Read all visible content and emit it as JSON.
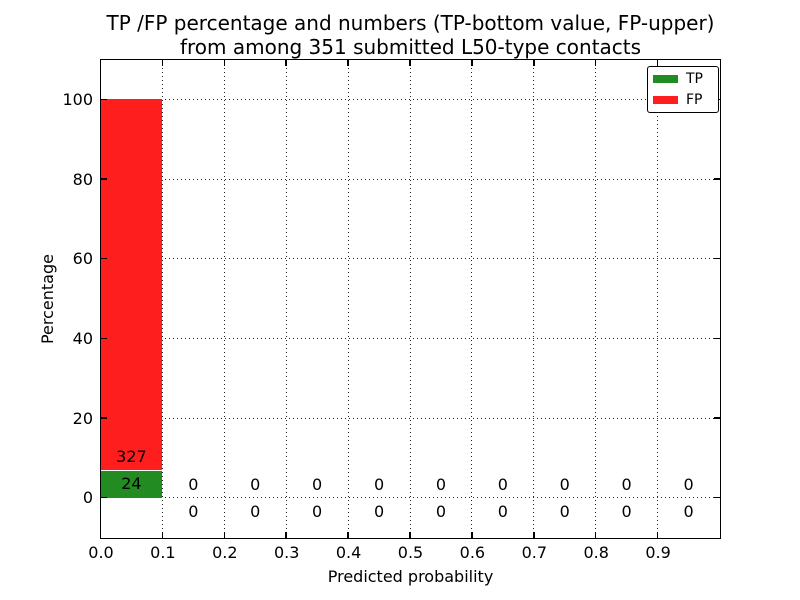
{
  "figure": {
    "title_line1": "TP /FP percentage and numbers (TP-bottom value, FP-upper)",
    "title_line2": "from among 351 submitted L50-type contacts",
    "xlabel": "Predicted probability",
    "ylabel": "Percentage"
  },
  "legend": {
    "position": "upper-right",
    "items": [
      {
        "label": "TP",
        "color": "#228b22"
      },
      {
        "label": "FP",
        "color": "#ff1e1e"
      }
    ]
  },
  "colors": {
    "tp": "#228b22",
    "fp": "#ff1e1e",
    "grid": "#222222",
    "axis": "#000000",
    "background": "#ffffff",
    "text": "#000000"
  },
  "chart_data": {
    "type": "bar",
    "stacked": true,
    "title": "TP /FP percentage and numbers (TP-bottom value, FP-upper) from among 351 submitted L50-type contacts",
    "xlabel": "Predicted probability",
    "ylabel": "Percentage",
    "total_submitted": 351,
    "bin_starts": [
      0.0,
      0.1,
      0.2,
      0.3,
      0.4,
      0.5,
      0.6,
      0.7,
      0.8,
      0.9
    ],
    "bin_width": 0.1,
    "series": [
      {
        "name": "TP",
        "color": "#228b22",
        "counts": [
          24,
          0,
          0,
          0,
          0,
          0,
          0,
          0,
          0,
          0
        ],
        "percent": [
          6.8376,
          0,
          0,
          0,
          0,
          0,
          0,
          0,
          0,
          0
        ]
      },
      {
        "name": "FP",
        "color": "#ff1e1e",
        "counts": [
          327,
          0,
          0,
          0,
          0,
          0,
          0,
          0,
          0,
          0
        ],
        "percent": [
          93.1624,
          0,
          0,
          0,
          0,
          0,
          0,
          0,
          0,
          0
        ]
      }
    ],
    "xlim": [
      0.0,
      1.0
    ],
    "ylim": [
      -10,
      110
    ],
    "xtick_labels": [
      "0.0",
      "0.1",
      "0.2",
      "0.3",
      "0.4",
      "0.5",
      "0.6",
      "0.7",
      "0.8",
      "0.9"
    ],
    "ytick_labels": [
      "0",
      "20",
      "40",
      "60",
      "80",
      "100"
    ],
    "ytick_values": [
      0,
      20,
      40,
      60,
      80,
      100
    ],
    "grid": "dotted",
    "legend_position": "upper right"
  }
}
